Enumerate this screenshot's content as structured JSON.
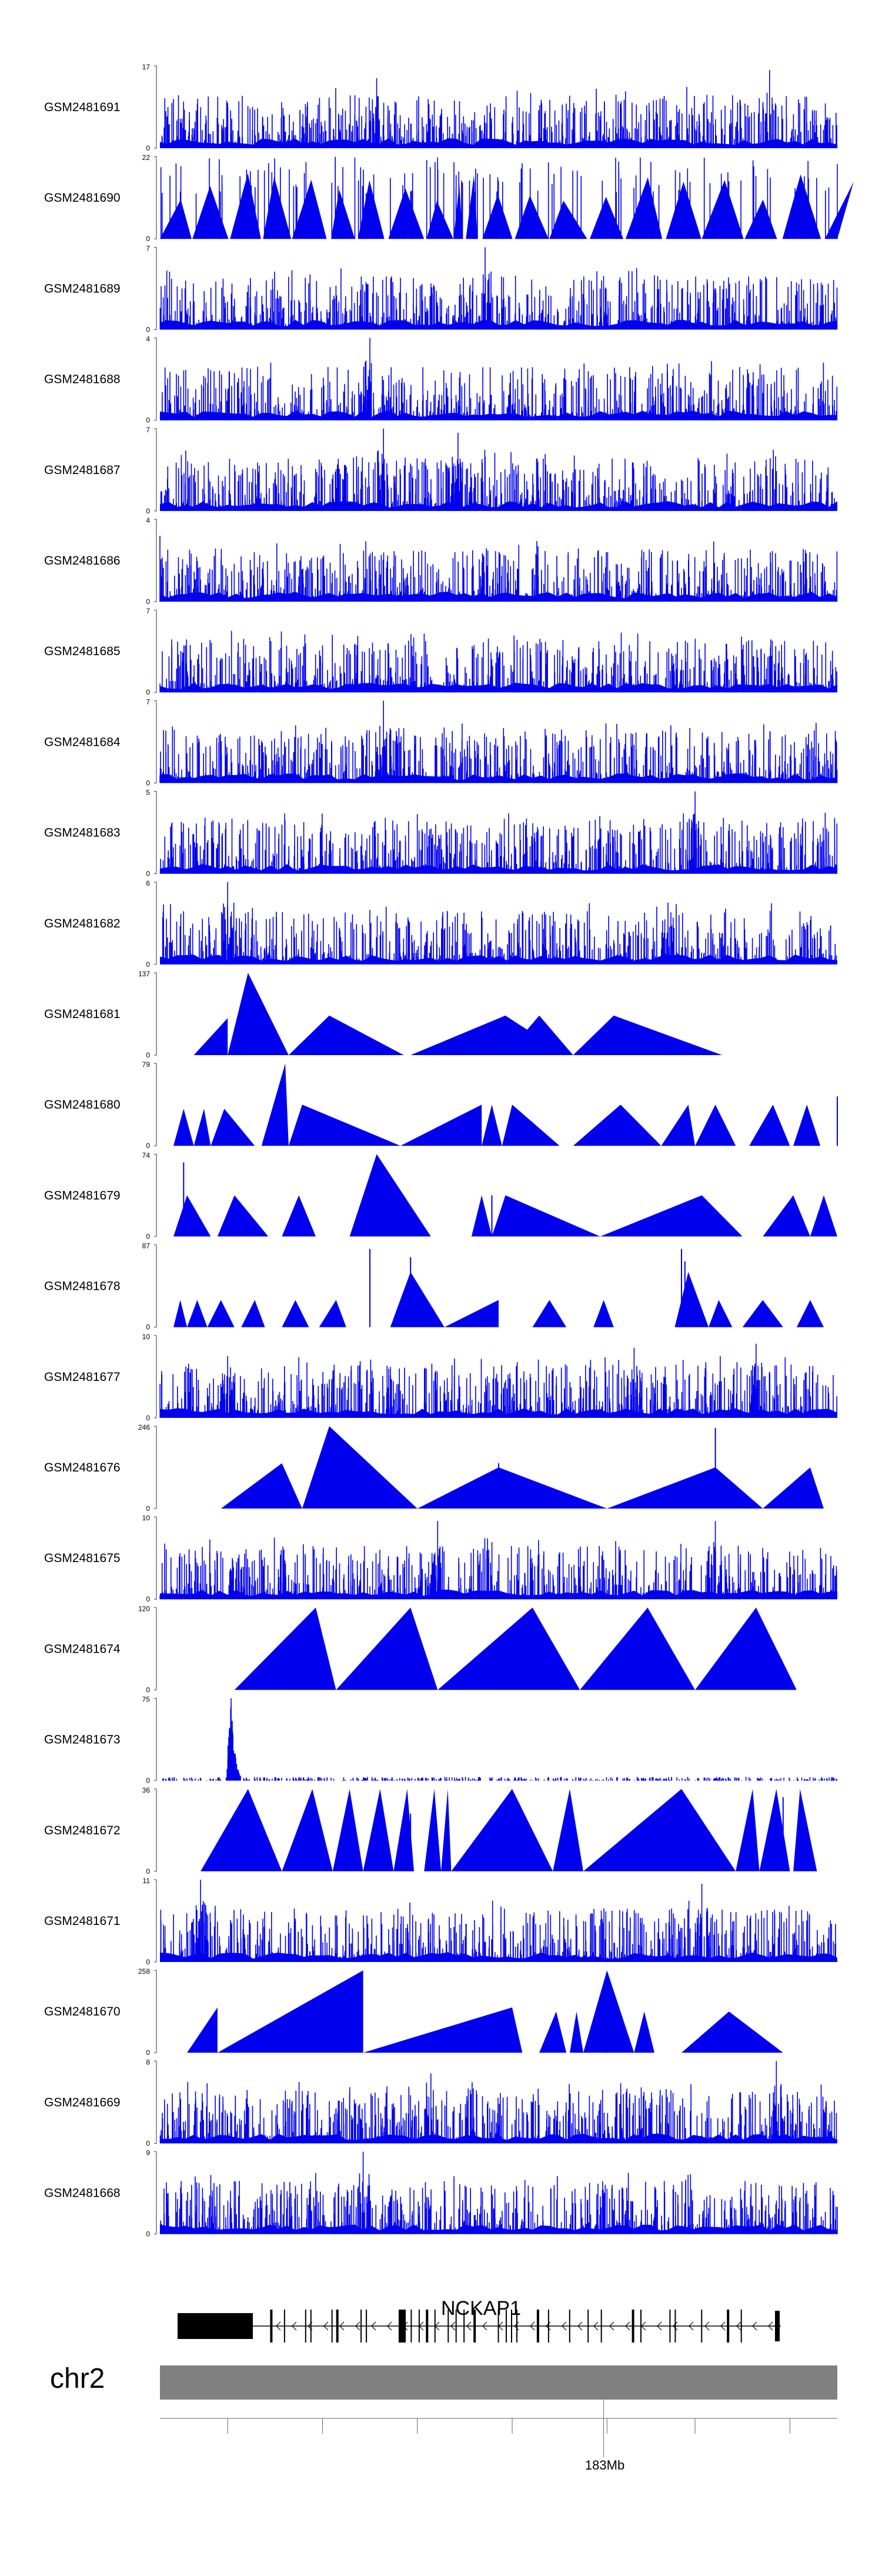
{
  "chart_data": {
    "type": "area",
    "title": "",
    "tracks": [
      {
        "name": "GSM2481691",
        "ymax": "17",
        "ymin": "0",
        "style": "dense",
        "peaks": [
          [
            0.1,
            0.55
          ],
          [
            0.32,
            0.85
          ],
          [
            0.9,
            0.95
          ]
        ]
      },
      {
        "name": "GSM2481690",
        "ymax": "22",
        "ymin": "0",
        "style": "dense_triangles",
        "peaks": [
          [
            0.34,
            1.0
          ],
          [
            0.15,
            0.6
          ]
        ]
      },
      {
        "name": "GSM2481689",
        "ymax": "7",
        "ymin": "0",
        "style": "dense",
        "peaks": [
          [
            0.48,
            1.0
          ]
        ]
      },
      {
        "name": "GSM2481688",
        "ymax": "4",
        "ymin": "0",
        "style": "dense",
        "peaks": [
          [
            0.31,
            1.0
          ]
        ]
      },
      {
        "name": "GSM2481687",
        "ymax": "7",
        "ymin": "0",
        "style": "dense",
        "peaks": [
          [
            0.33,
            1.0
          ],
          [
            0.44,
            0.95
          ]
        ]
      },
      {
        "name": "GSM2481686",
        "ymax": "4",
        "ymin": "0",
        "style": "dense",
        "peaks": [
          [
            0.0,
            0.8
          ]
        ]
      },
      {
        "name": "GSM2481685",
        "ymax": "7",
        "ymin": "0",
        "style": "dense",
        "peaks": []
      },
      {
        "name": "GSM2481684",
        "ymax": "7",
        "ymin": "0",
        "style": "dense",
        "peaks": [
          [
            0.33,
            1.0
          ]
        ]
      },
      {
        "name": "GSM2481683",
        "ymax": "5",
        "ymin": "0",
        "style": "dense",
        "peaks": [
          [
            0.79,
            1.0
          ]
        ]
      },
      {
        "name": "GSM2481682",
        "ymax": "6",
        "ymin": "0",
        "style": "dense",
        "peaks": [
          [
            0.1,
            1.0
          ],
          [
            0.75,
            0.75
          ]
        ]
      },
      {
        "name": "GSM2481681",
        "ymax": "137",
        "ymin": "0",
        "style": "triangles",
        "spikes": [
          [
            0.25,
            0.25
          ],
          [
            0.67,
            0.35
          ]
        ],
        "segments": [
          [
            0.05,
            0.1,
            0.45,
            0.1
          ],
          [
            0.1,
            0.13,
            1.0,
            0.19
          ],
          [
            0.19,
            0.25,
            0.48,
            0.36
          ],
          [
            0.37,
            0.51,
            0.48,
            0.6
          ],
          [
            0.51,
            0.56,
            0.48,
            0.61
          ],
          [
            0.61,
            0.67,
            0.48,
            0.83
          ]
        ]
      },
      {
        "name": "GSM2481680",
        "ymax": "79",
        "ymin": "0",
        "style": "triangles",
        "spikes": [
          [
            0.915,
            0.25
          ],
          [
            1.0,
            0.6
          ]
        ],
        "segments": [
          [
            0.02,
            0.035,
            0.45,
            0.05
          ],
          [
            0.05,
            0.065,
            0.45,
            0.075
          ],
          [
            0.075,
            0.095,
            0.45,
            0.14
          ],
          [
            0.15,
            0.185,
            1.0,
            0.19
          ],
          [
            0.19,
            0.21,
            0.5,
            0.355
          ],
          [
            0.355,
            0.475,
            0.5,
            0.475
          ],
          [
            0.475,
            0.49,
            0.5,
            0.505
          ],
          [
            0.505,
            0.52,
            0.5,
            0.59
          ],
          [
            0.61,
            0.68,
            0.5,
            0.74
          ],
          [
            0.74,
            0.78,
            0.5,
            0.79
          ],
          [
            0.79,
            0.82,
            0.5,
            0.85
          ],
          [
            0.87,
            0.905,
            0.5,
            0.93
          ],
          [
            0.935,
            0.955,
            0.5,
            0.975
          ]
        ]
      },
      {
        "name": "GSM2481679",
        "ymax": "74",
        "ymin": "0",
        "style": "triangles",
        "spikes": [
          [
            0.035,
            0.9
          ],
          [
            0.49,
            0.5
          ]
        ],
        "segments": [
          [
            0.02,
            0.04,
            0.5,
            0.075
          ],
          [
            0.085,
            0.11,
            0.5,
            0.16
          ],
          [
            0.18,
            0.205,
            0.5,
            0.23
          ],
          [
            0.28,
            0.32,
            1.0,
            0.4
          ],
          [
            0.46,
            0.475,
            0.5,
            0.49
          ],
          [
            0.49,
            0.51,
            0.5,
            0.65
          ],
          [
            0.65,
            0.8,
            0.5,
            0.86
          ],
          [
            0.89,
            0.935,
            0.5,
            0.96
          ],
          [
            0.96,
            0.98,
            0.5,
            1.0
          ]
        ]
      },
      {
        "name": "GSM2481678",
        "ymax": "87",
        "ymin": "0",
        "style": "triangles",
        "spikes": [
          [
            0.31,
            0.95
          ],
          [
            0.37,
            0.85
          ],
          [
            0.77,
            0.95
          ],
          [
            0.775,
            0.8
          ]
        ],
        "segments": [
          [
            0.02,
            0.03,
            0.33,
            0.04
          ],
          [
            0.04,
            0.055,
            0.33,
            0.07
          ],
          [
            0.07,
            0.09,
            0.33,
            0.11
          ],
          [
            0.12,
            0.14,
            0.33,
            0.155
          ],
          [
            0.18,
            0.2,
            0.33,
            0.22
          ],
          [
            0.235,
            0.26,
            0.33,
            0.275
          ],
          [
            0.34,
            0.37,
            0.67,
            0.42
          ],
          [
            0.42,
            0.5,
            0.33,
            0.5
          ],
          [
            0.55,
            0.575,
            0.33,
            0.6
          ],
          [
            0.64,
            0.655,
            0.33,
            0.67
          ],
          [
            0.76,
            0.78,
            0.67,
            0.81
          ],
          [
            0.81,
            0.825,
            0.33,
            0.845
          ],
          [
            0.86,
            0.89,
            0.33,
            0.92
          ],
          [
            0.94,
            0.96,
            0.33,
            0.98
          ]
        ]
      },
      {
        "name": "GSM2481677",
        "ymax": "10",
        "ymin": "0",
        "style": "dense",
        "peaks": [
          [
            0.1,
            0.75
          ],
          [
            0.7,
            0.85
          ],
          [
            0.88,
            0.9
          ]
        ]
      },
      {
        "name": "GSM2481676",
        "ymax": "246",
        "ymin": "0",
        "style": "triangles",
        "spikes": [
          [
            0.5,
            0.55
          ],
          [
            0.82,
            0.98
          ]
        ],
        "segments": [
          [
            0.09,
            0.18,
            0.55,
            0.21
          ],
          [
            0.21,
            0.25,
            1.0,
            0.38
          ],
          [
            0.38,
            0.5,
            0.5,
            0.66
          ],
          [
            0.66,
            0.82,
            0.5,
            0.89
          ],
          [
            0.89,
            0.96,
            0.5,
            0.98
          ]
        ]
      },
      {
        "name": "GSM2481675",
        "ymax": "10",
        "ymin": "0",
        "style": "dense",
        "peaks": [
          [
            0.41,
            0.95
          ],
          [
            0.82,
            0.95
          ]
        ]
      },
      {
        "name": "GSM2481674",
        "ymax": "120",
        "ymin": "0",
        "style": "triangles",
        "spikes": [],
        "segments": [
          [
            0.11,
            0.23,
            1.0,
            0.26
          ],
          [
            0.26,
            0.37,
            1.0,
            0.41
          ],
          [
            0.41,
            0.55,
            1.0,
            0.62
          ],
          [
            0.62,
            0.72,
            1.0,
            0.79
          ],
          [
            0.79,
            0.88,
            1.0,
            0.94
          ]
        ]
      },
      {
        "name": "GSM2481673",
        "ymax": "75",
        "ymin": "0",
        "style": "sparse_peak",
        "peaks": [
          [
            0.105,
            1.0
          ]
        ]
      },
      {
        "name": "GSM2481672",
        "ymax": "36",
        "ymin": "0",
        "style": "triangles",
        "spikes": [
          [
            0.37,
            0.7
          ],
          [
            0.92,
            0.9
          ]
        ],
        "segments": [
          [
            0.06,
            0.13,
            1.0,
            0.18
          ],
          [
            0.18,
            0.225,
            1.0,
            0.255
          ],
          [
            0.255,
            0.28,
            1.0,
            0.3
          ],
          [
            0.3,
            0.325,
            1.0,
            0.345
          ],
          [
            0.345,
            0.365,
            1.0,
            0.375
          ],
          [
            0.39,
            0.405,
            1.0,
            0.415
          ],
          [
            0.415,
            0.425,
            1.0,
            0.43
          ],
          [
            0.43,
            0.52,
            1.0,
            0.58
          ],
          [
            0.58,
            0.605,
            1.0,
            0.625
          ],
          [
            0.625,
            0.77,
            1.0,
            0.85
          ],
          [
            0.85,
            0.875,
            1.0,
            0.885
          ],
          [
            0.885,
            0.91,
            1.0,
            0.93
          ],
          [
            0.935,
            0.945,
            1.0,
            0.97
          ]
        ]
      },
      {
        "name": "GSM2481671",
        "ymax": "11",
        "ymin": "0",
        "style": "dense",
        "peaks": [
          [
            0.06,
            1.0
          ],
          [
            0.8,
            0.95
          ]
        ]
      },
      {
        "name": "GSM2481670",
        "ymax": "258",
        "ymin": "0",
        "style": "triangles",
        "spikes": [
          [
            0.52,
            0.35
          ],
          [
            0.66,
            0.5
          ]
        ],
        "segments": [
          [
            0.04,
            0.085,
            0.55,
            0.085
          ],
          [
            0.085,
            0.3,
            1.0,
            0.3
          ],
          [
            0.3,
            0.52,
            0.55,
            0.535
          ],
          [
            0.56,
            0.585,
            0.5,
            0.6
          ],
          [
            0.605,
            0.615,
            0.5,
            0.625
          ],
          [
            0.625,
            0.66,
            1.0,
            0.7
          ],
          [
            0.7,
            0.715,
            0.5,
            0.73
          ],
          [
            0.77,
            0.84,
            0.5,
            0.92
          ]
        ]
      },
      {
        "name": "GSM2481669",
        "ymax": "8",
        "ymin": "0",
        "style": "dense",
        "peaks": [
          [
            0.91,
            1.0
          ],
          [
            0.4,
            0.85
          ]
        ]
      },
      {
        "name": "GSM2481668",
        "ymax": "9",
        "ymin": "0",
        "style": "dense",
        "peaks": [
          [
            0.3,
            1.0
          ]
        ]
      }
    ],
    "gene": {
      "name": "NCKAP1",
      "exon_positions": [
        0.035,
        0.06,
        0.1,
        0.11,
        0.15,
        0.16,
        0.205,
        0.215,
        0.3,
        0.315,
        0.33,
        0.345,
        0.37,
        0.385,
        0.4,
        0.42,
        0.465,
        0.48,
        0.49,
        0.5,
        0.54,
        0.56,
        0.6,
        0.635,
        0.66,
        0.72,
        0.735,
        0.79,
        0.8,
        0.85,
        0.9,
        0.925
      ]
    },
    "chromosome": {
      "name": "chr2",
      "tick_label": "183Mb",
      "tick_fraction": 0.655,
      "minor_ticks": [
        0.1,
        0.24,
        0.38,
        0.52,
        0.66,
        0.79,
        0.93
      ]
    },
    "colors": {
      "signal": "#0000ee",
      "axis": "#333333",
      "ideogram": "#808080",
      "gene": "#000000"
    }
  }
}
